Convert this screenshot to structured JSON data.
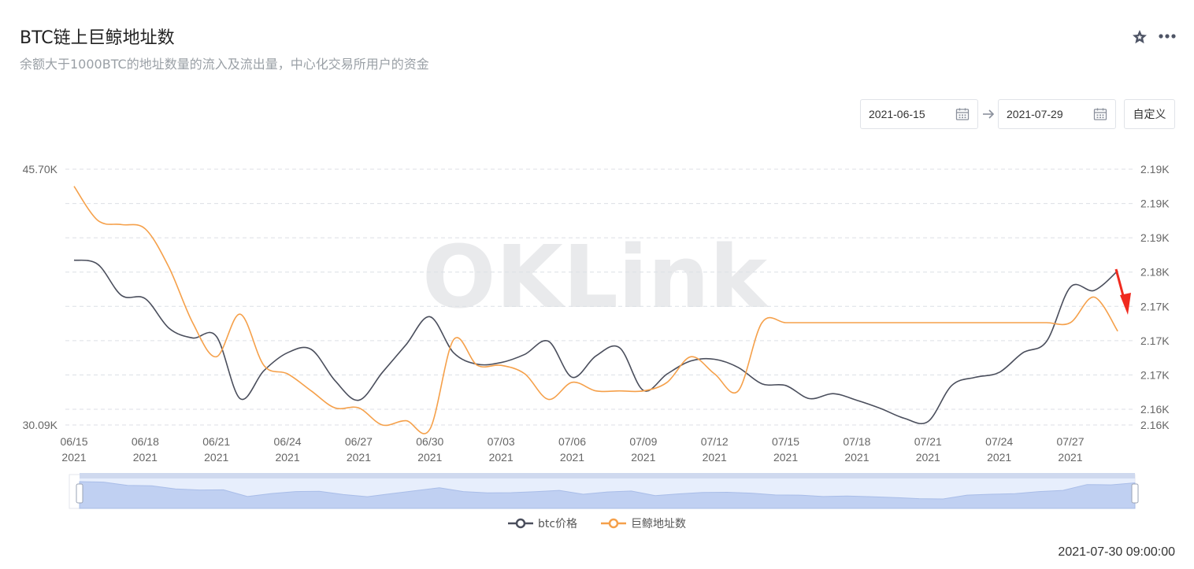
{
  "header": {
    "title": "BTC链上巨鲸地址数",
    "subtitle": "余额大于1000BTC的地址数量的流入及流出量，中心化交易所用户的资金",
    "star_icon": "star-icon",
    "more_icon": "more-icon"
  },
  "date_range": {
    "start": "2021-06-15",
    "end": "2021-07-29",
    "calendar_icon": "calendar-icon",
    "arrow_icon": "arrow-right-icon",
    "custom_label": "自定义"
  },
  "watermark": "OKLink",
  "chart_data": {
    "type": "line",
    "x_axis": {
      "tick_labels": [
        {
          "date": "06/15",
          "year": "2021"
        },
        {
          "date": "06/18",
          "year": "2021"
        },
        {
          "date": "06/21",
          "year": "2021"
        },
        {
          "date": "06/24",
          "year": "2021"
        },
        {
          "date": "06/27",
          "year": "2021"
        },
        {
          "date": "06/30",
          "year": "2021"
        },
        {
          "date": "07/03",
          "year": "2021"
        },
        {
          "date": "07/06",
          "year": "2021"
        },
        {
          "date": "07/09",
          "year": "2021"
        },
        {
          "date": "07/12",
          "year": "2021"
        },
        {
          "date": "07/15",
          "year": "2021"
        },
        {
          "date": "07/18",
          "year": "2021"
        },
        {
          "date": "07/21",
          "year": "2021"
        },
        {
          "date": "07/24",
          "year": "2021"
        },
        {
          "date": "07/27",
          "year": "2021"
        }
      ]
    },
    "y_left": {
      "min": 30090,
      "max": 45700,
      "min_label": "30.09K",
      "max_label": "45.70K"
    },
    "y_right": {
      "min": 2160,
      "max": 2190,
      "tick_labels": [
        "2.19K",
        "2.19K",
        "2.19K",
        "2.18K",
        "2.17K",
        "2.17K",
        "2.17K",
        "2.16K",
        "2.16K"
      ]
    },
    "grid": true,
    "legend_position": "bottom",
    "series": [
      {
        "name": "btc价格",
        "axis": "left",
        "color": "#4a4e5c",
        "x": [
          "2021-06-15",
          "2021-06-16",
          "2021-06-17",
          "2021-06-18",
          "2021-06-19",
          "2021-06-20",
          "2021-06-21",
          "2021-06-22",
          "2021-06-23",
          "2021-06-24",
          "2021-06-25",
          "2021-06-26",
          "2021-06-27",
          "2021-06-28",
          "2021-06-29",
          "2021-06-30",
          "2021-07-01",
          "2021-07-02",
          "2021-07-03",
          "2021-07-04",
          "2021-07-05",
          "2021-07-06",
          "2021-07-07",
          "2021-07-08",
          "2021-07-09",
          "2021-07-10",
          "2021-07-11",
          "2021-07-12",
          "2021-07-13",
          "2021-07-14",
          "2021-07-15",
          "2021-07-16",
          "2021-07-17",
          "2021-07-18",
          "2021-07-19",
          "2021-07-20",
          "2021-07-21",
          "2021-07-22",
          "2021-07-23",
          "2021-07-24",
          "2021-07-25",
          "2021-07-26",
          "2021-07-27",
          "2021-07-28",
          "2021-07-29"
        ],
        "values": [
          40150,
          39900,
          38000,
          37800,
          36000,
          35400,
          35500,
          31700,
          33400,
          34500,
          34700,
          32800,
          31600,
          33300,
          35000,
          36700,
          34500,
          33800,
          33900,
          34400,
          35200,
          33000,
          34300,
          34800,
          32200,
          33200,
          34000,
          34100,
          33600,
          32600,
          32500,
          31700,
          32000,
          31600,
          31100,
          30500,
          30300,
          32500,
          33000,
          33300,
          34500,
          35200,
          38500,
          38300,
          39500
        ],
        "y_unit": "USD"
      },
      {
        "name": "巨鲸地址数",
        "axis": "right",
        "color": "#f5a04a",
        "x": [
          "2021-06-15",
          "2021-06-16",
          "2021-06-17",
          "2021-06-18",
          "2021-06-19",
          "2021-06-20",
          "2021-06-21",
          "2021-06-22",
          "2021-06-23",
          "2021-06-24",
          "2021-06-25",
          "2021-06-26",
          "2021-06-27",
          "2021-06-28",
          "2021-06-29",
          "2021-06-30",
          "2021-07-01",
          "2021-07-02",
          "2021-07-03",
          "2021-07-04",
          "2021-07-05",
          "2021-07-06",
          "2021-07-07",
          "2021-07-08",
          "2021-07-09",
          "2021-07-10",
          "2021-07-11",
          "2021-07-12",
          "2021-07-13",
          "2021-07-14",
          "2021-07-15",
          "2021-07-16",
          "2021-07-17",
          "2021-07-18",
          "2021-07-19",
          "2021-07-20",
          "2021-07-21",
          "2021-07-22",
          "2021-07-23",
          "2021-07-24",
          "2021-07-25",
          "2021-07-26",
          "2021-07-27",
          "2021-07-28",
          "2021-07-29"
        ],
        "values": [
          2188,
          2184,
          2183.5,
          2183,
          2178.5,
          2172,
          2168,
          2173,
          2167,
          2166,
          2164,
          2162,
          2162,
          2160,
          2160.5,
          2159.5,
          2170,
          2167,
          2167,
          2166,
          2163,
          2165,
          2164,
          2164,
          2164,
          2165,
          2168,
          2166,
          2164,
          2172,
          2172,
          2172,
          2172,
          2172,
          2172,
          2172,
          2172,
          2172,
          2172,
          2172,
          2172,
          2172,
          2172,
          2175,
          2171
        ],
        "y_unit": "addresses"
      }
    ]
  },
  "legend": {
    "items": [
      {
        "label": "btc价格",
        "color": "#4a4e5c"
      },
      {
        "label": "巨鲸地址数",
        "color": "#f5a04a"
      }
    ]
  },
  "footer": {
    "timestamp": "2021-07-30 09:00:00"
  }
}
